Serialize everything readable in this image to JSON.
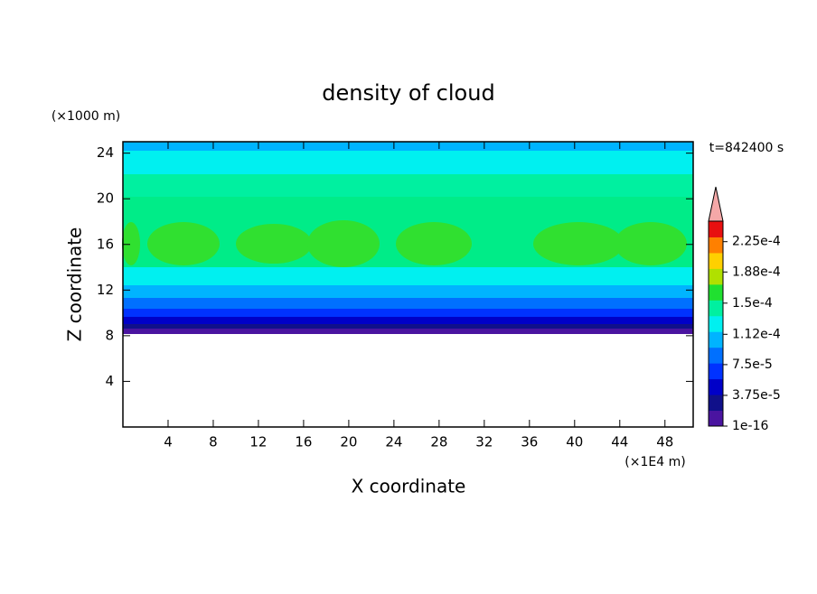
{
  "chart_data": {
    "type": "contour",
    "title": "density of cloud",
    "xlabel": "X coordinate",
    "ylabel": "Z coordinate",
    "x_unit": "(×1E4 m)",
    "y_unit": "(×1000 m)",
    "annotation": "t=842400 s",
    "xlim": [
      0,
      50.5
    ],
    "xticks": [
      4,
      8,
      12,
      16,
      20,
      24,
      28,
      32,
      36,
      40,
      44,
      48
    ],
    "ylim": [
      0,
      25
    ],
    "yticks": [
      4,
      8,
      12,
      16,
      20,
      24
    ],
    "colorbar": {
      "clim": [
        0,
        0.00025
      ],
      "colors": [
        "#4a14a0",
        "#10108a",
        "#0000c8",
        "#0032ff",
        "#0070ff",
        "#00b4ff",
        "#00f0f0",
        "#00f0a0",
        "#20e030",
        "#b0e000",
        "#ffd000",
        "#ff8000",
        "#e81010"
      ],
      "extend_color": "#f4a8a8",
      "ticks": [
        1e-16,
        {
          "value": 3.75e-05,
          "label": "3.75e-5"
        },
        {
          "value": 7.5e-05,
          "label": "7.5e-5"
        },
        {
          "value": 0.000112,
          "label": "1.12e-4"
        },
        {
          "value": 0.00015,
          "label": "1.5e-4"
        },
        {
          "value": 0.000188,
          "label": "1.88e-4"
        },
        {
          "value": 0.000225,
          "label": "2.25e-4"
        }
      ]
    }
  }
}
